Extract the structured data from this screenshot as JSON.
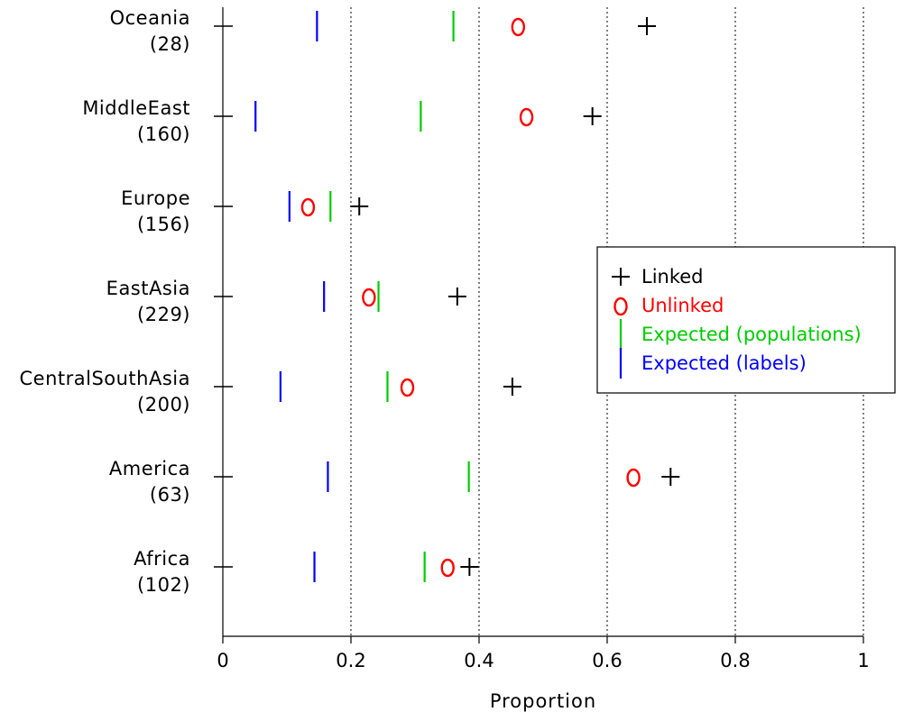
{
  "chart_data": {
    "type": "scatter",
    "xlabel": "Proportion",
    "ylabel": "",
    "title": "",
    "xlim": [
      0,
      1
    ],
    "xticks": [
      0,
      0.2,
      0.4,
      0.6,
      0.8,
      1
    ],
    "xtick_labels": [
      "0",
      "0.2",
      "0.4",
      "0.6",
      "0.8",
      "1"
    ],
    "grid": "vertical dotted at 0.2, 0.4, 0.6, 0.8, 1",
    "legend_position": "right",
    "categories": [
      {
        "name": "Africa",
        "count": "(102)"
      },
      {
        "name": "America",
        "count": "(63)"
      },
      {
        "name": "CentralSouthAsia",
        "count": "(200)"
      },
      {
        "name": "EastAsia",
        "count": "(229)"
      },
      {
        "name": "Europe",
        "count": "(156)"
      },
      {
        "name": "MiddleEast",
        "count": "(160)"
      },
      {
        "name": "Oceania",
        "count": "(28)"
      }
    ],
    "series": [
      {
        "name": "Linked",
        "marker": "+",
        "color": "#000000",
        "values": [
          0.385,
          0.699,
          0.452,
          0.366,
          0.213,
          0.577,
          0.662
        ]
      },
      {
        "name": "Unlinked",
        "marker": "o",
        "color": "#ff0000",
        "values": [
          0.351,
          0.641,
          0.288,
          0.228,
          0.133,
          0.474,
          0.461
        ]
      },
      {
        "name": "Expected (populations)",
        "marker": "|",
        "color": "#00cc00",
        "values": [
          0.315,
          0.384,
          0.257,
          0.243,
          0.168,
          0.309,
          0.36
        ]
      },
      {
        "name": "Expected (labels)",
        "marker": "|",
        "color": "#0000ff",
        "values": [
          0.143,
          0.164,
          0.09,
          0.158,
          0.104,
          0.051,
          0.147
        ]
      }
    ]
  }
}
